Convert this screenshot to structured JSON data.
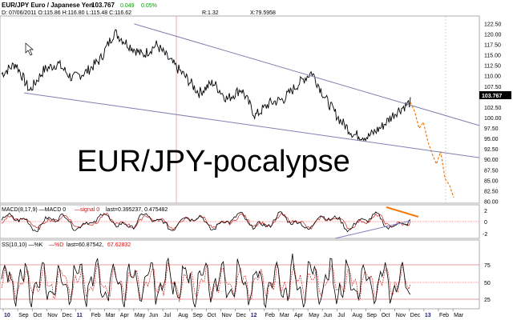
{
  "header": {
    "symbol": "EUR/JPY Euro / Japanese Yen",
    "last": "103.767",
    "change": "0.049",
    "change_pct": "0.05%",
    "ohlc": "D: 07/06/2011 O:115.86 H:116.80 L:115.48 C:116.62",
    "r": "R:1.32",
    "x": "X:79.5958"
  },
  "annotation": "EUR/JPY-pocalypse",
  "colors": {
    "price": "#000000",
    "projection": "#f07a10",
    "trendline": "#8080b0",
    "signal": "#d02020",
    "change_up": "#0a9a0a"
  },
  "chart_data": {
    "type": "line",
    "ylim": [
      80,
      124
    ],
    "y_ticks": [
      "122.50",
      "120.00",
      "117.50",
      "115.00",
      "112.50",
      "110.00",
      "107.50",
      "105.00",
      "102.50",
      "100.00",
      "97.50",
      "95.00",
      "92.50",
      "90.00",
      "87.50",
      "85.00",
      "82.50",
      "80.00"
    ],
    "x_ticks": [
      "10",
      "Sep",
      "Oct",
      "Nov",
      "Dec",
      "11",
      "Feb",
      "Mar",
      "Apr",
      "May",
      "Jun",
      "Jul",
      "Aug",
      "Sep",
      "Oct",
      "Nov",
      "Dec",
      "12",
      "Feb",
      "Mar",
      "Apr",
      "May",
      "Jun",
      "Jul",
      "Aug",
      "Sep",
      "Oct",
      "Nov",
      "Dec",
      "13",
      "Feb",
      "Mar"
    ],
    "x_tick_bold": [
      "10",
      "11",
      "12",
      "13"
    ],
    "price_anchors": [
      110.5,
      113.0,
      106.5,
      111.5,
      113.0,
      109.5,
      111.0,
      114.0,
      120.5,
      117.5,
      115.0,
      117.5,
      113.5,
      110.0,
      106.0,
      108.5,
      104.5,
      107.0,
      100.5,
      103.5,
      104.5,
      108.0,
      111.0,
      104.5,
      99.5,
      96.0,
      95.5,
      98.0,
      101.5,
      103.767
    ],
    "projection": [
      103.767,
      101.5,
      97.5,
      99.0,
      94.5,
      91.5,
      89.0,
      92.0,
      85.5,
      84.0,
      81.0
    ],
    "trendlines": {
      "upper": [
        [
          122.5,
          0.28
        ],
        [
          98.2,
          1.0
        ]
      ],
      "lower": [
        [
          106.0,
          0.05
        ],
        [
          90.5,
          1.0
        ]
      ]
    }
  },
  "macd": {
    "label": "MACD(8,17,9) —MACD 0",
    "signal_label": "—signal 0",
    "last_label": "last=0.395237, 0.475482",
    "ticks": [
      "2",
      "0",
      "-2"
    ],
    "ylim": [
      -3,
      3
    ]
  },
  "stoch": {
    "label": "SS(10,10) —%K",
    "d_label": "—%D",
    "last_label": "last=60.87542,",
    "d_last": "67.62832",
    "ticks": [
      "75",
      "50",
      "25"
    ],
    "ylim": [
      0,
      100
    ]
  }
}
